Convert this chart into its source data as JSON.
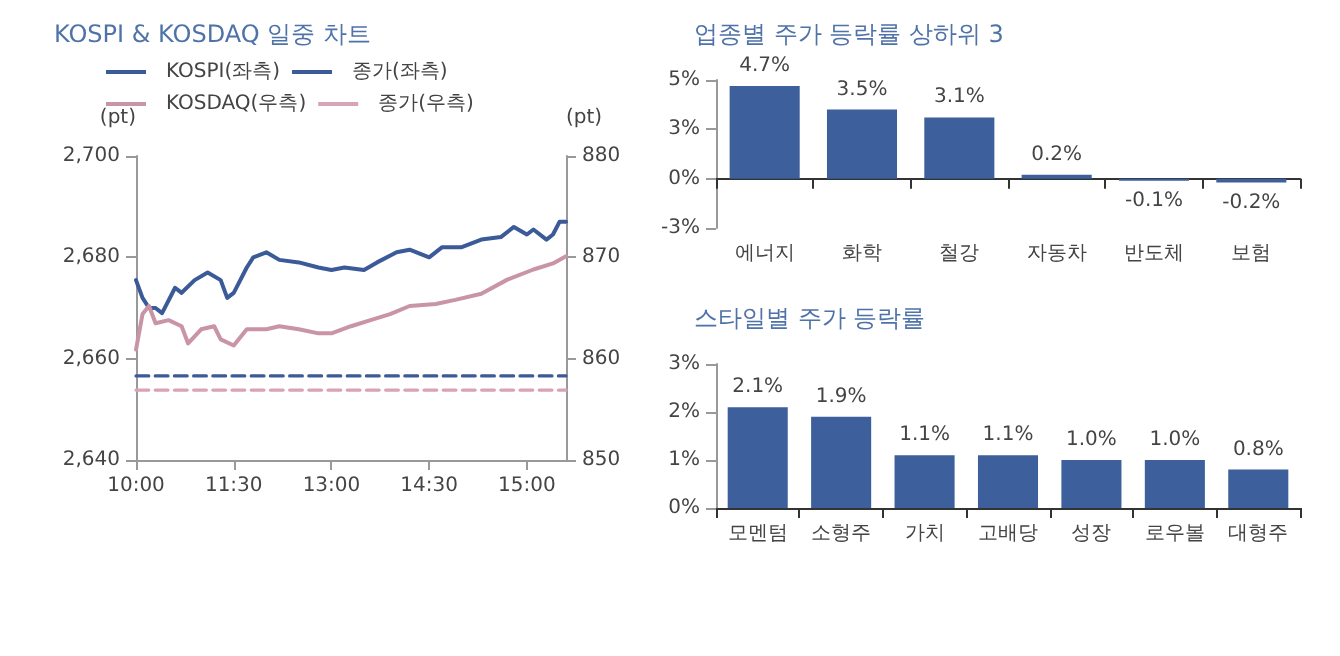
{
  "chart_data": [
    {
      "type": "line",
      "title": "KOSPI & KOSDAQ 일중 차트",
      "ylabel": "(pt)",
      "y2label": "(pt)",
      "legend": "top",
      "marker": "none",
      "categories": [
        "10:00",
        null,
        null,
        null,
        null,
        null,
        null,
        null,
        null,
        null,
        null,
        null,
        null,
        null,
        null,
        "11:30",
        null,
        null,
        null,
        null,
        null,
        null,
        null,
        null,
        null,
        null,
        null,
        null,
        null,
        null,
        "13:00",
        null,
        null,
        null,
        null,
        null,
        null,
        null,
        null,
        null,
        null,
        null,
        null,
        null,
        null,
        "14:30",
        null,
        null,
        null,
        null,
        null,
        null,
        null,
        null,
        null,
        null,
        null,
        null,
        null,
        null,
        "15:00",
        null,
        null,
        null,
        null,
        null,
        null
      ],
      "ylim": [
        2640,
        2700
      ],
      "yticks": [
        {
          "value": 2640,
          "label": "2,640"
        },
        {
          "value": 2660,
          "label": "2,660"
        },
        {
          "value": 2680,
          "label": "2,680"
        },
        {
          "value": 2700,
          "label": "2,700"
        }
      ],
      "y2lim": [
        850,
        880
      ],
      "y2ticks": [
        850,
        860,
        870,
        880
      ],
      "series": [
        {
          "name": "KOSPI(좌측)",
          "color": "#3b5a98",
          "line_style": "solid",
          "values": [
            2675.5,
            2672,
            2670,
            2670,
            2669,
            null,
            2674,
            2673,
            null,
            2675.5,
            null,
            2677,
            null,
            2675.5,
            2672,
            2673,
            null,
            2678,
            2680,
            null,
            2681,
            null,
            2679.5,
            null,
            null,
            2679,
            null,
            null,
            2678,
            null,
            2677.5,
            null,
            2678,
            null,
            null,
            2677.5,
            null,
            2679,
            null,
            null,
            2681,
            null,
            2681.5,
            null,
            null,
            2680,
            null,
            2682,
            null,
            null,
            2682,
            null,
            null,
            2683.5,
            null,
            null,
            2684,
            null,
            2686,
            null,
            2684.5,
            2685.5,
            null,
            2683.5,
            2684.5,
            2687,
            2687
          ]
        },
        {
          "name": "종가(좌측)",
          "color": "#3b5a98",
          "line_style": "dashed",
          "values": [
            2656.6,
            null,
            null,
            null,
            null,
            null,
            null,
            null,
            null,
            null,
            null,
            null,
            null,
            null,
            null,
            null,
            null,
            null,
            null,
            null,
            null,
            null,
            null,
            null,
            null,
            null,
            null,
            null,
            null,
            null,
            null,
            null,
            null,
            null,
            null,
            null,
            null,
            null,
            null,
            null,
            null,
            null,
            null,
            null,
            null,
            null,
            null,
            null,
            null,
            null,
            null,
            null,
            null,
            null,
            null,
            null,
            null,
            null,
            null,
            null,
            null,
            null,
            null,
            null,
            null,
            null,
            2656.6
          ]
        },
        {
          "name": "KOSDAQ(우측)",
          "color": "#c994a8",
          "line_style": "solid",
          "axis": "y2",
          "values": [
            860.9,
            864.4,
            865.2,
            863.5,
            null,
            863.8,
            null,
            863.2,
            861.5,
            null,
            862.9,
            null,
            863.2,
            861.9,
            null,
            861.3,
            null,
            862.9,
            null,
            null,
            862.9,
            null,
            863.2,
            null,
            null,
            862.9,
            null,
            null,
            862.5,
            null,
            862.5,
            null,
            null,
            863.2,
            null,
            null,
            863.8,
            null,
            null,
            864.4,
            null,
            null,
            865.2,
            null,
            null,
            null,
            865.4,
            null,
            null,
            865.8,
            null,
            null,
            null,
            866.4,
            null,
            null,
            null,
            867.8,
            null,
            null,
            null,
            868.8,
            null,
            null,
            869.4,
            null,
            870.1
          ]
        },
        {
          "name": "종가(우측)",
          "color": "#d9a3b6",
          "line_style": "dashed",
          "axis": "y2",
          "values": [
            856.9,
            null,
            null,
            null,
            null,
            null,
            null,
            null,
            null,
            null,
            null,
            null,
            null,
            null,
            null,
            null,
            null,
            null,
            null,
            null,
            null,
            null,
            null,
            null,
            null,
            null,
            null,
            null,
            null,
            null,
            null,
            null,
            null,
            null,
            null,
            null,
            null,
            null,
            null,
            null,
            null,
            null,
            null,
            null,
            null,
            null,
            null,
            null,
            null,
            null,
            null,
            null,
            null,
            null,
            null,
            null,
            null,
            null,
            null,
            null,
            null,
            null,
            null,
            null,
            null,
            null,
            856.9
          ]
        }
      ]
    },
    {
      "type": "bar",
      "title": "업종별 주가 등락률 상하위 3",
      "categories": [
        "에너지",
        "화학",
        "철강",
        "자동차",
        "반도체",
        "보험"
      ],
      "ylim": [
        -2.5,
        5
      ],
      "yticks": [
        {
          "value": -2.5,
          "label": "-3%"
        },
        {
          "value": 0,
          "label": "0%"
        },
        {
          "value": 2.5,
          "label": "3%"
        },
        {
          "value": 5,
          "label": "5%"
        }
      ],
      "series": [
        {
          "color": "#3d5f9b",
          "values": [
            4.7,
            3.5,
            3.1,
            0.2,
            -0.1,
            -0.2
          ],
          "value_labels": [
            "4.7%",
            "3.5%",
            "3.1%",
            "0.2%",
            "-0.1%",
            "-0.2%"
          ]
        }
      ]
    },
    {
      "type": "bar",
      "title": "스타일별 주가 등락률",
      "categories": [
        "모멘텀",
        "소형주",
        "가치",
        "고배당",
        "성장",
        "로우볼",
        "대형주"
      ],
      "ylim": [
        0,
        3
      ],
      "yticks": [
        {
          "value": 0,
          "label": "0%"
        },
        {
          "value": 1,
          "label": "1%"
        },
        {
          "value": 2,
          "label": "2%"
        },
        {
          "value": 3,
          "label": "3%"
        }
      ],
      "series": [
        {
          "color": "#3d5f9b",
          "values": [
            2.1,
            1.9,
            1.1,
            1.1,
            1.0,
            1.0,
            0.8
          ],
          "value_labels": [
            "2.1%",
            "1.9%",
            "1.1%",
            "1.1%",
            "1.0%",
            "1.0%",
            "0.8%"
          ]
        }
      ]
    }
  ]
}
